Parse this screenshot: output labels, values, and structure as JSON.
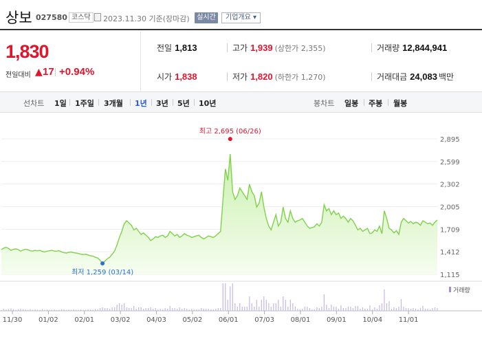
{
  "header": {
    "name": "상보",
    "code": "027580",
    "market": "코스닥",
    "date": "2023.11.30 기준(장마감)",
    "realtime_label": "실시간",
    "overview_label": "기업개요 ▾"
  },
  "quote": {
    "price": "1,830",
    "change_label": "전일대비",
    "change_arrow": "▲",
    "change_value": "17",
    "change_pct": "+0.94%",
    "prev_close_label": "전일",
    "prev_close": "1,813",
    "high_label": "고가",
    "high": "1,939",
    "upper_limit": "(상한가 2,355)",
    "volume_label": "거래량",
    "volume": "12,844,941",
    "open_label": "시가",
    "open": "1,838",
    "low_label": "저가",
    "low": "1,820",
    "lower_limit": "(하한가 1,270)",
    "amount_label": "거래대금",
    "amount": "24,083",
    "amount_unit": "백만"
  },
  "periods": {
    "line_label": "선차트",
    "items": [
      "1일",
      "1주일",
      "3개월",
      "1년",
      "3년",
      "5년",
      "10년"
    ],
    "active": "1년",
    "candle_label": "봉차트",
    "candle_items": [
      "일봉",
      "주봉",
      "월봉"
    ]
  },
  "chart_data": {
    "type": "area",
    "y_ticks": [
      "2,895",
      "2,599",
      "2,302",
      "2,005",
      "1,709",
      "1,412",
      "1,115"
    ],
    "ylim": [
      1115,
      2895
    ],
    "x_ticks": [
      "11/30",
      "01/02",
      "02/01",
      "03/02",
      "04/03",
      "05/02",
      "06/01",
      "07/03",
      "08/01",
      "09/01",
      "10/04",
      "11/01"
    ],
    "max_annotation": "최고 2,695 (06/26)",
    "min_annotation": "최저 1,259 (03/14)",
    "max_value": 2695,
    "min_value": 1259,
    "volume_legend": "거래량",
    "line_color": "#7fd14a",
    "values": [
      1440,
      1460,
      1470,
      1455,
      1430,
      1445,
      1450,
      1440,
      1420,
      1435,
      1445,
      1440,
      1425,
      1420,
      1430,
      1425,
      1430,
      1415,
      1410,
      1420,
      1425,
      1430,
      1420,
      1420,
      1425,
      1410,
      1400,
      1395,
      1405,
      1410,
      1400,
      1395,
      1390,
      1380,
      1375,
      1380,
      1370,
      1360,
      1355,
      1340,
      1330,
      1300,
      1259,
      1290,
      1320,
      1340,
      1380,
      1420,
      1500,
      1600,
      1680,
      1780,
      1820,
      1790,
      1760,
      1700,
      1720,
      1680,
      1640,
      1660,
      1630,
      1600,
      1560,
      1580,
      1610,
      1600,
      1620,
      1630,
      1600,
      1620,
      1680,
      1650,
      1620,
      1640,
      1600,
      1620,
      1650,
      1630,
      1620,
      1600,
      1610,
      1620,
      1630,
      1600,
      1580,
      1600,
      1620,
      1610,
      1600,
      1620,
      1650,
      1680,
      2100,
      2500,
      2350,
      2695,
      2200,
      2100,
      2150,
      2250,
      2200,
      2150,
      2100,
      2300,
      2200,
      2150,
      2000,
      2050,
      2200,
      2000,
      1850,
      1750,
      1700,
      1800,
      1900,
      1750,
      1800,
      2000,
      1850,
      1800,
      1950,
      1850,
      1800,
      1820,
      1830,
      1850,
      1800,
      1750,
      1720,
      1730,
      1740,
      1780,
      1750,
      1800,
      2030,
      1950,
      1980,
      1900,
      1950,
      1900,
      1920,
      1850,
      1880,
      1850,
      1800,
      1850,
      1820,
      1760,
      1700,
      1720,
      1680,
      1700,
      1720,
      1650,
      1660,
      1700,
      1680,
      1750,
      1650,
      1950,
      1850,
      1720,
      1700,
      1660,
      1690,
      1640,
      1800,
      1850,
      1820,
      1790,
      1810,
      1780,
      1800,
      1790,
      1760,
      1820,
      1800,
      1780,
      1790,
      1760,
      1800,
      1830
    ]
  }
}
